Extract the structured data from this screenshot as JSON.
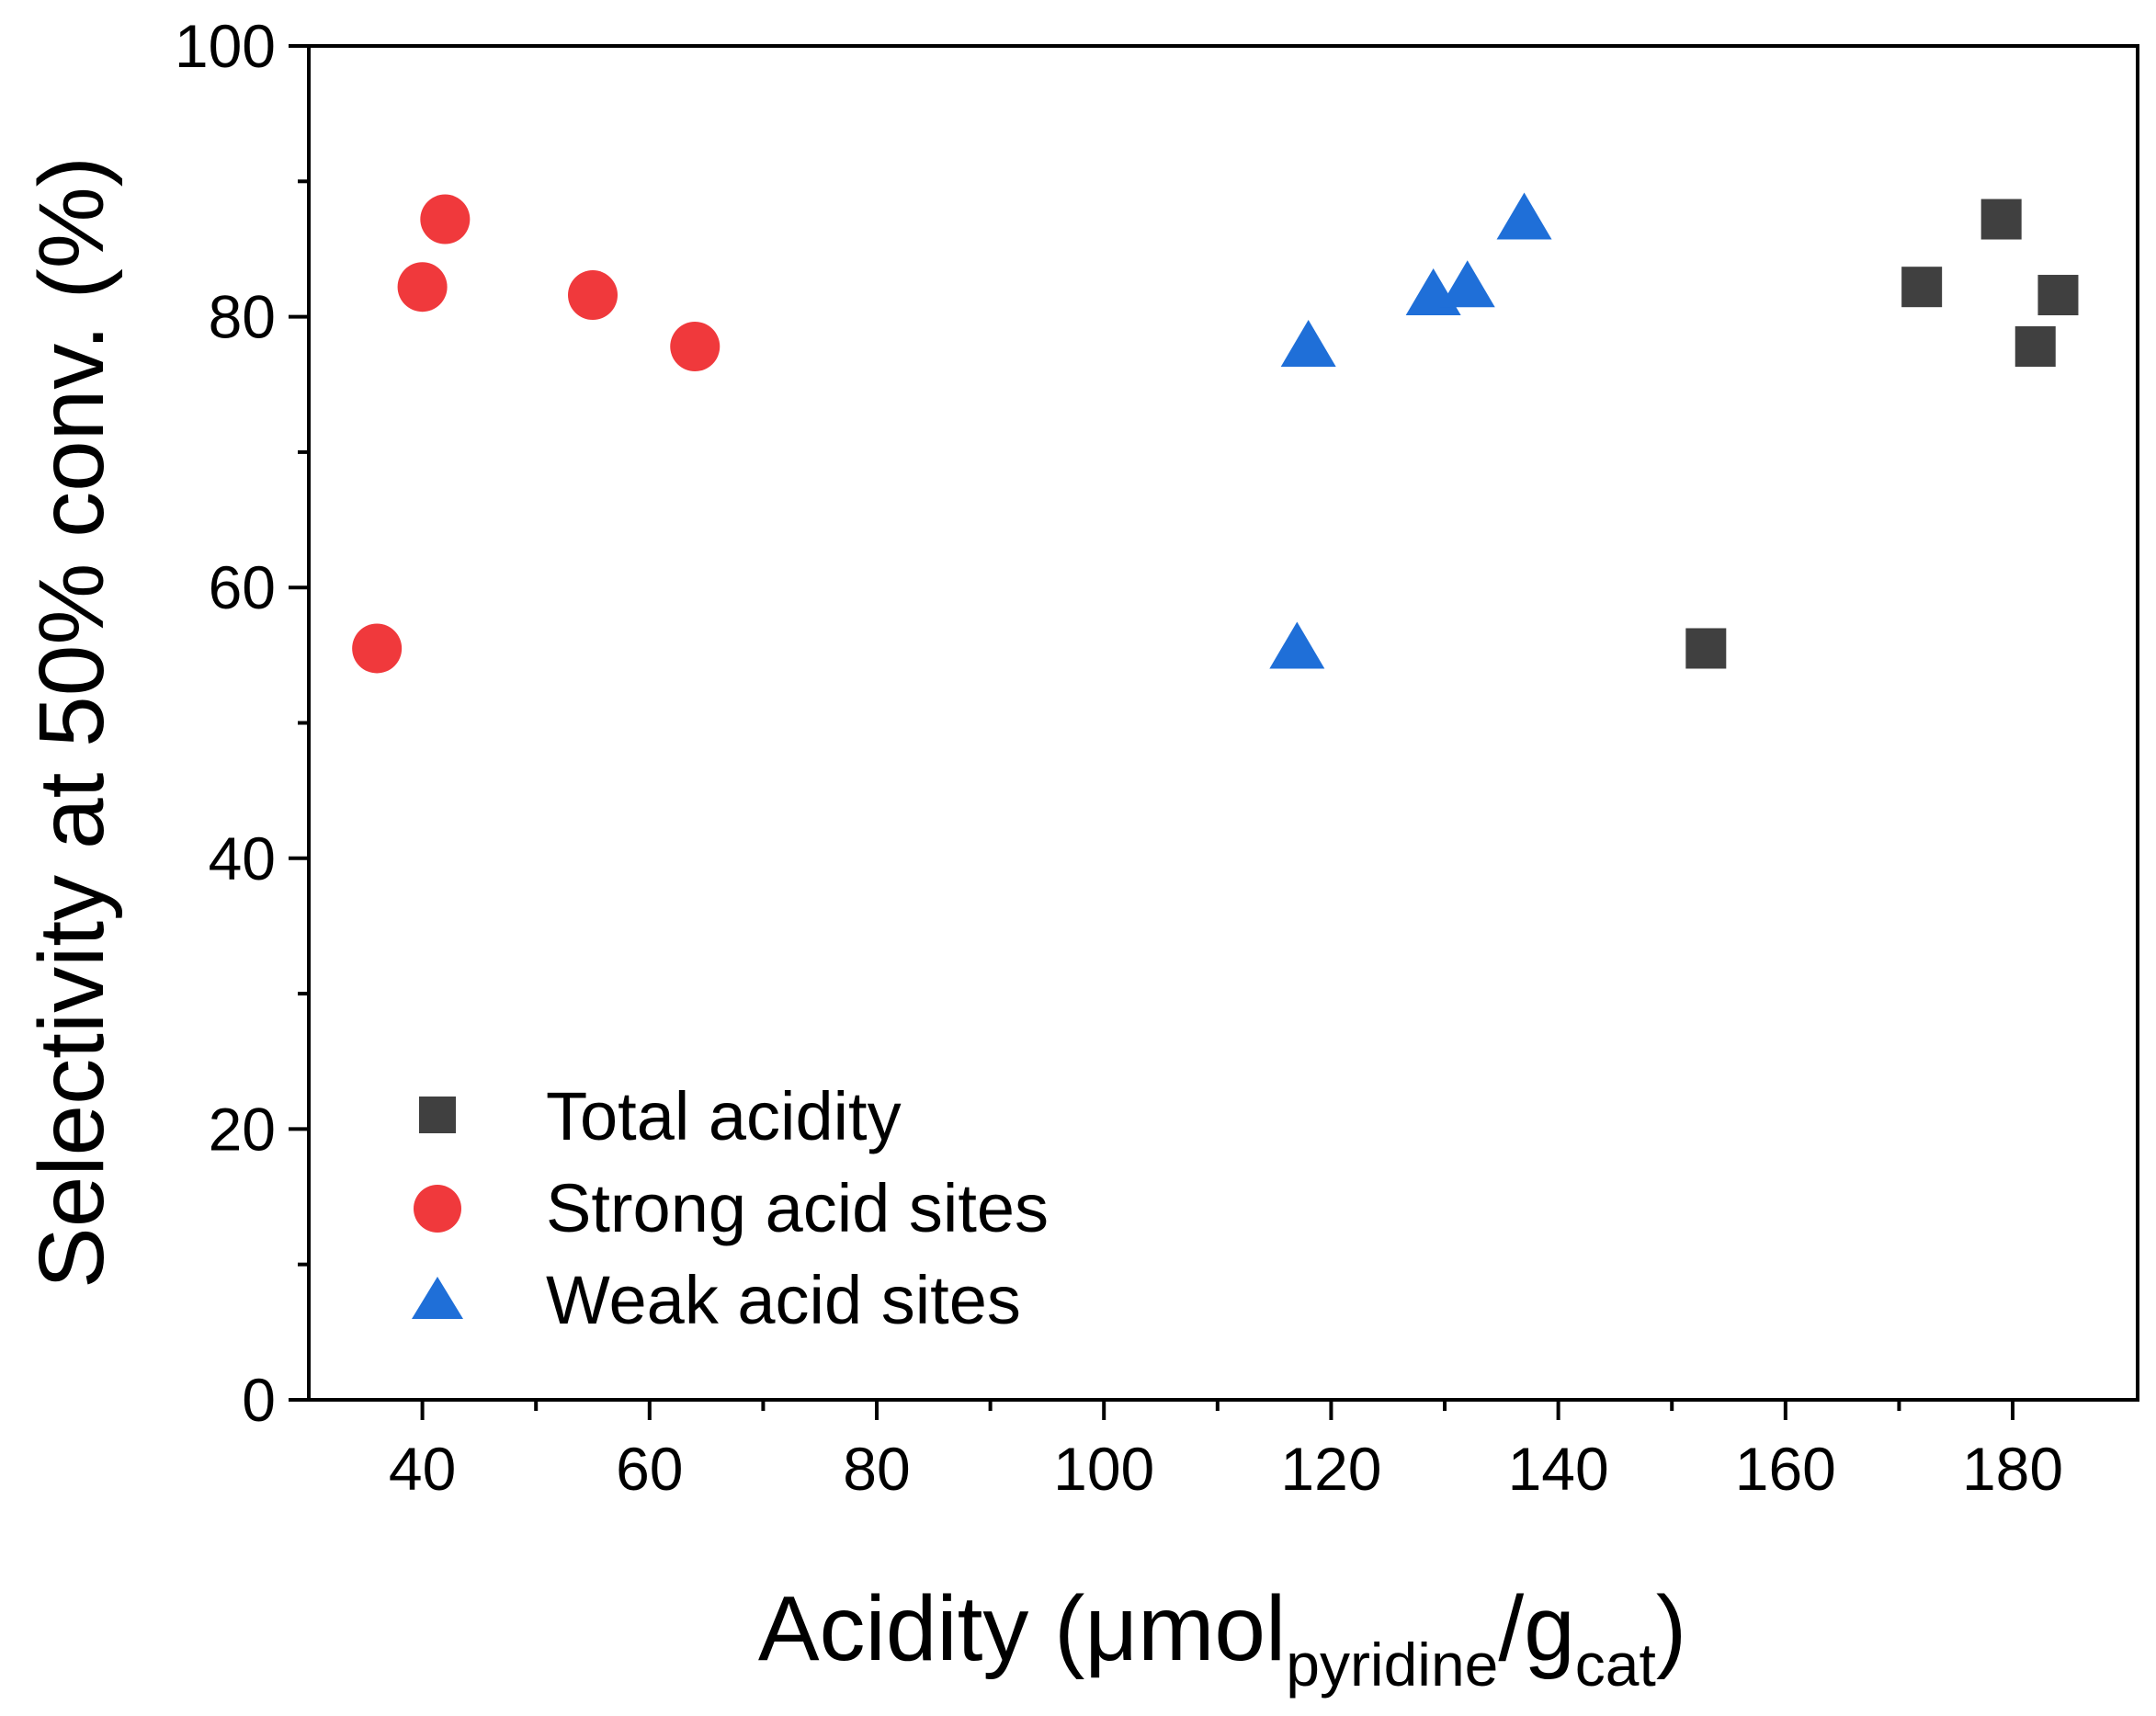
{
  "chart_data": {
    "type": "scatter",
    "xlabel": {
      "main": "Acidity (μmol",
      "sub1": "pyridine",
      "mid": "/g",
      "sub2": "cat",
      "end": ")"
    },
    "ylabel": "Selectivity at 50% conv. (%)",
    "xlim": [
      30,
      191
    ],
    "ylim": [
      0,
      100
    ],
    "x_ticks": [
      40,
      60,
      80,
      100,
      120,
      140,
      160,
      180
    ],
    "y_ticks": [
      0,
      20,
      40,
      60,
      80,
      100
    ],
    "grid": false,
    "legend_position": "bottom-left",
    "series": [
      {
        "name": "Total acidity",
        "marker": "square",
        "color": "#404040",
        "points": [
          [
            153,
            55.5
          ],
          [
            172,
            82.2
          ],
          [
            179,
            87.2
          ],
          [
            182,
            77.8
          ],
          [
            184,
            81.6
          ]
        ]
      },
      {
        "name": "Strong acid sites",
        "marker": "circle",
        "color": "#f0393c",
        "points": [
          [
            36,
            55.5
          ],
          [
            40,
            82.2
          ],
          [
            42,
            87.2
          ],
          [
            55,
            81.6
          ],
          [
            64,
            77.8
          ]
        ]
      },
      {
        "name": "Weak acid sites",
        "marker": "triangle",
        "color": "#1f6fd8",
        "points": [
          [
            117,
            55.5
          ],
          [
            118,
            77.8
          ],
          [
            129,
            81.6
          ],
          [
            132,
            82.2
          ],
          [
            137,
            87.2
          ]
        ]
      }
    ]
  }
}
